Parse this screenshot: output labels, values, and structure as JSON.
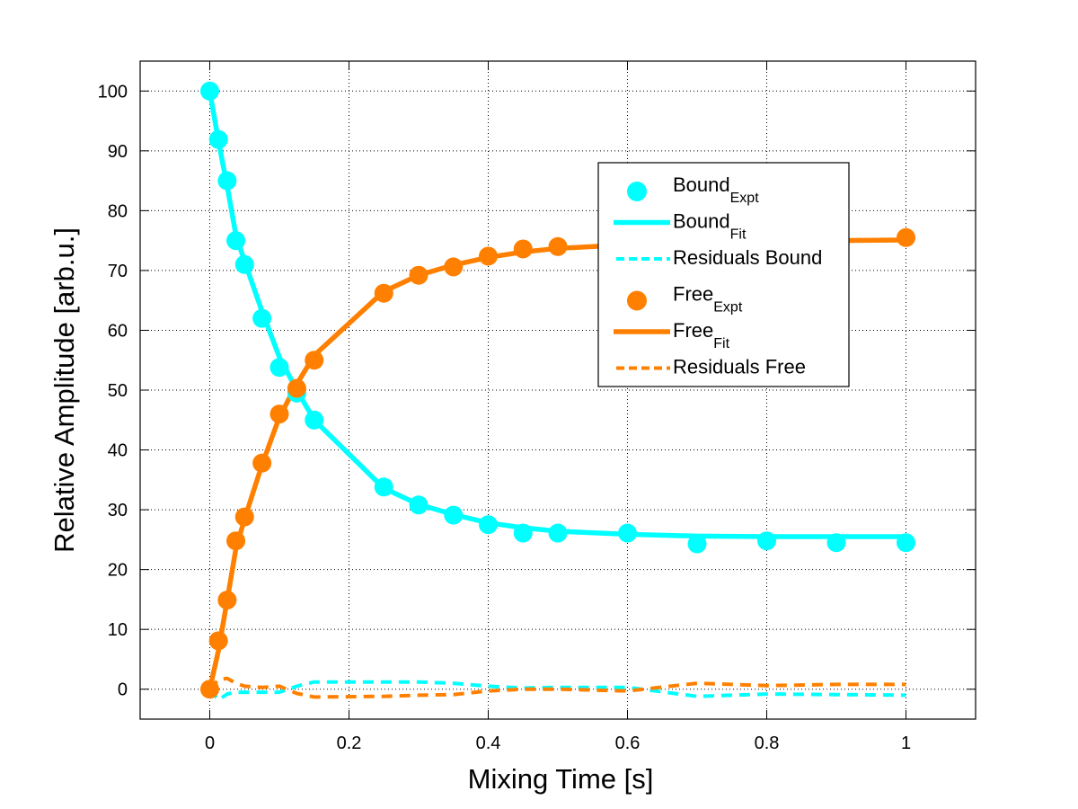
{
  "chart_data": {
    "type": "line",
    "title": "",
    "xlabel": "Mixing Time [s]",
    "ylabel": "Relative Amplitude [arb.u.]",
    "xlim": [
      -0.1,
      1.1
    ],
    "ylim": [
      -5,
      105
    ],
    "xticks": [
      0,
      0.2,
      0.4,
      0.6,
      0.8,
      1
    ],
    "xtick_labels": [
      "0",
      "0.2",
      "0.4",
      "0.6",
      "0.8",
      "1"
    ],
    "yticks": [
      0,
      10,
      20,
      30,
      40,
      50,
      60,
      70,
      80,
      90,
      100
    ],
    "ytick_labels": [
      "0",
      "10",
      "20",
      "30",
      "40",
      "50",
      "60",
      "70",
      "80",
      "90",
      "100"
    ],
    "grid": true,
    "legend_position": "upper-right-inside",
    "x": [
      0,
      0.0125,
      0.025,
      0.0375,
      0.05,
      0.075,
      0.1,
      0.125,
      0.15,
      0.25,
      0.3,
      0.35,
      0.4,
      0.45,
      0.5,
      0.6,
      0.7,
      0.8,
      0.9,
      1.0
    ],
    "series": [
      {
        "name": "Bound_Expt",
        "label_main": "Bound",
        "label_sub": "Expt",
        "kind": "markers",
        "color": "#00FFFF",
        "values": [
          100,
          91.9,
          85,
          75,
          71,
          62,
          53.8,
          49.5,
          45,
          33.8,
          30.8,
          29.1,
          27.5,
          26.1,
          26.1,
          26.1,
          24.3,
          24.8,
          24.5,
          24.5
        ]
      },
      {
        "name": "Bound_Fit",
        "label_main": "Bound",
        "label_sub": "Fit",
        "kind": "line",
        "color": "#00FFFF",
        "values": [
          100,
          91.6,
          84.1,
          75.9,
          71.5,
          63.2,
          55.5,
          50.0,
          45.0,
          33.6,
          30.9,
          29.2,
          27.8,
          27.0,
          26.4,
          25.9,
          25.6,
          25.5,
          25.5,
          25.5
        ]
      },
      {
        "name": "Residuals Bound",
        "label_main": "Residuals Bound",
        "label_sub": "",
        "kind": "dashed",
        "color": "#00FFFF",
        "values": [
          0,
          -1.8,
          -0.8,
          -0.5,
          -0.5,
          -0.5,
          -0.5,
          0.5,
          1.2,
          1.2,
          1.2,
          1.0,
          0.5,
          0.2,
          0.3,
          0.3,
          -1.2,
          -0.8,
          -0.9,
          -1.0
        ]
      },
      {
        "name": "Free_Expt",
        "label_main": "Free",
        "label_sub": "Expt",
        "kind": "markers",
        "color": "#FF8000",
        "values": [
          0,
          8.1,
          14.9,
          24.8,
          28.8,
          37.8,
          46,
          50.3,
          55,
          66.2,
          69.2,
          70.6,
          72.4,
          73.6,
          74,
          null,
          null,
          null,
          null,
          75.5
        ]
      },
      {
        "name": "Free_Fit",
        "label_main": "Free",
        "label_sub": "Fit",
        "kind": "line",
        "color": "#FF8000",
        "values": [
          0,
          6.5,
          14.9,
          23.5,
          28.5,
          37.5,
          45.5,
          51.0,
          55.8,
          66.5,
          69.2,
          70.9,
          72.2,
          73.1,
          73.7,
          74.3,
          74.6,
          74.8,
          75.0,
          75.1
        ]
      },
      {
        "name": "Residuals Free",
        "label_main": "Residuals Free",
        "label_sub": "",
        "kind": "dashed",
        "color": "#FF8000",
        "values": [
          0,
          1.6,
          1.8,
          1.0,
          0.5,
          0.3,
          0.5,
          -0.7,
          -1.3,
          -1.2,
          -1.0,
          -0.9,
          -0.3,
          0,
          0,
          -0.3,
          1.0,
          0.6,
          0.8,
          0.8
        ]
      }
    ]
  }
}
